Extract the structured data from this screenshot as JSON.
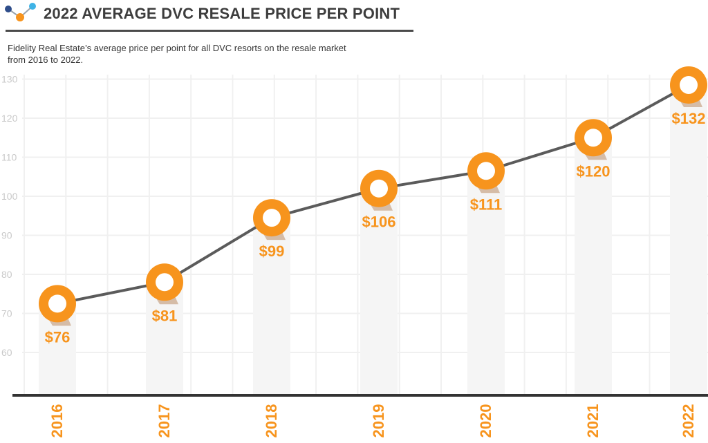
{
  "header": {
    "title": "2022 AVERAGE DVC RESALE PRICE PER POINT",
    "subtitle": "Fidelity Real Estate’s average price per point for all DVC resorts on the resale market from 2016 to 2022."
  },
  "chart_data": {
    "type": "line",
    "title": "2022 AVERAGE DVC RESALE PRICE PER POINT",
    "subtitle": "Fidelity Real Estate’s average price per point for all DVC resorts on the resale market from 2016 to 2022.",
    "categories": [
      "2016",
      "2017",
      "2018",
      "2019",
      "2020",
      "2021",
      "2022"
    ],
    "values": [
      76,
      81,
      99,
      106,
      111,
      120,
      132
    ],
    "data_labels": [
      "$76",
      "$81",
      "$99",
      "$106",
      "$111",
      "$120",
      "$132"
    ],
    "plotted_values": [
      72.5,
      78,
      94.5,
      102,
      106.5,
      115,
      128.5
    ],
    "yticks": [
      60,
      70,
      80,
      90,
      100,
      110,
      120,
      130
    ],
    "ylim": [
      51,
      136
    ],
    "xlabel": "",
    "ylabel": "",
    "grid": true,
    "colors": {
      "accent": "#f7941d",
      "accent_dark": "#9a5418",
      "line": "#5b5b5b",
      "tick_label": "#c9c9c9",
      "grid": "#f0f0f0",
      "column": "#f5f5f5",
      "axis": "#333333"
    }
  },
  "icons": {
    "logo": "line-graph-logo-icon"
  }
}
